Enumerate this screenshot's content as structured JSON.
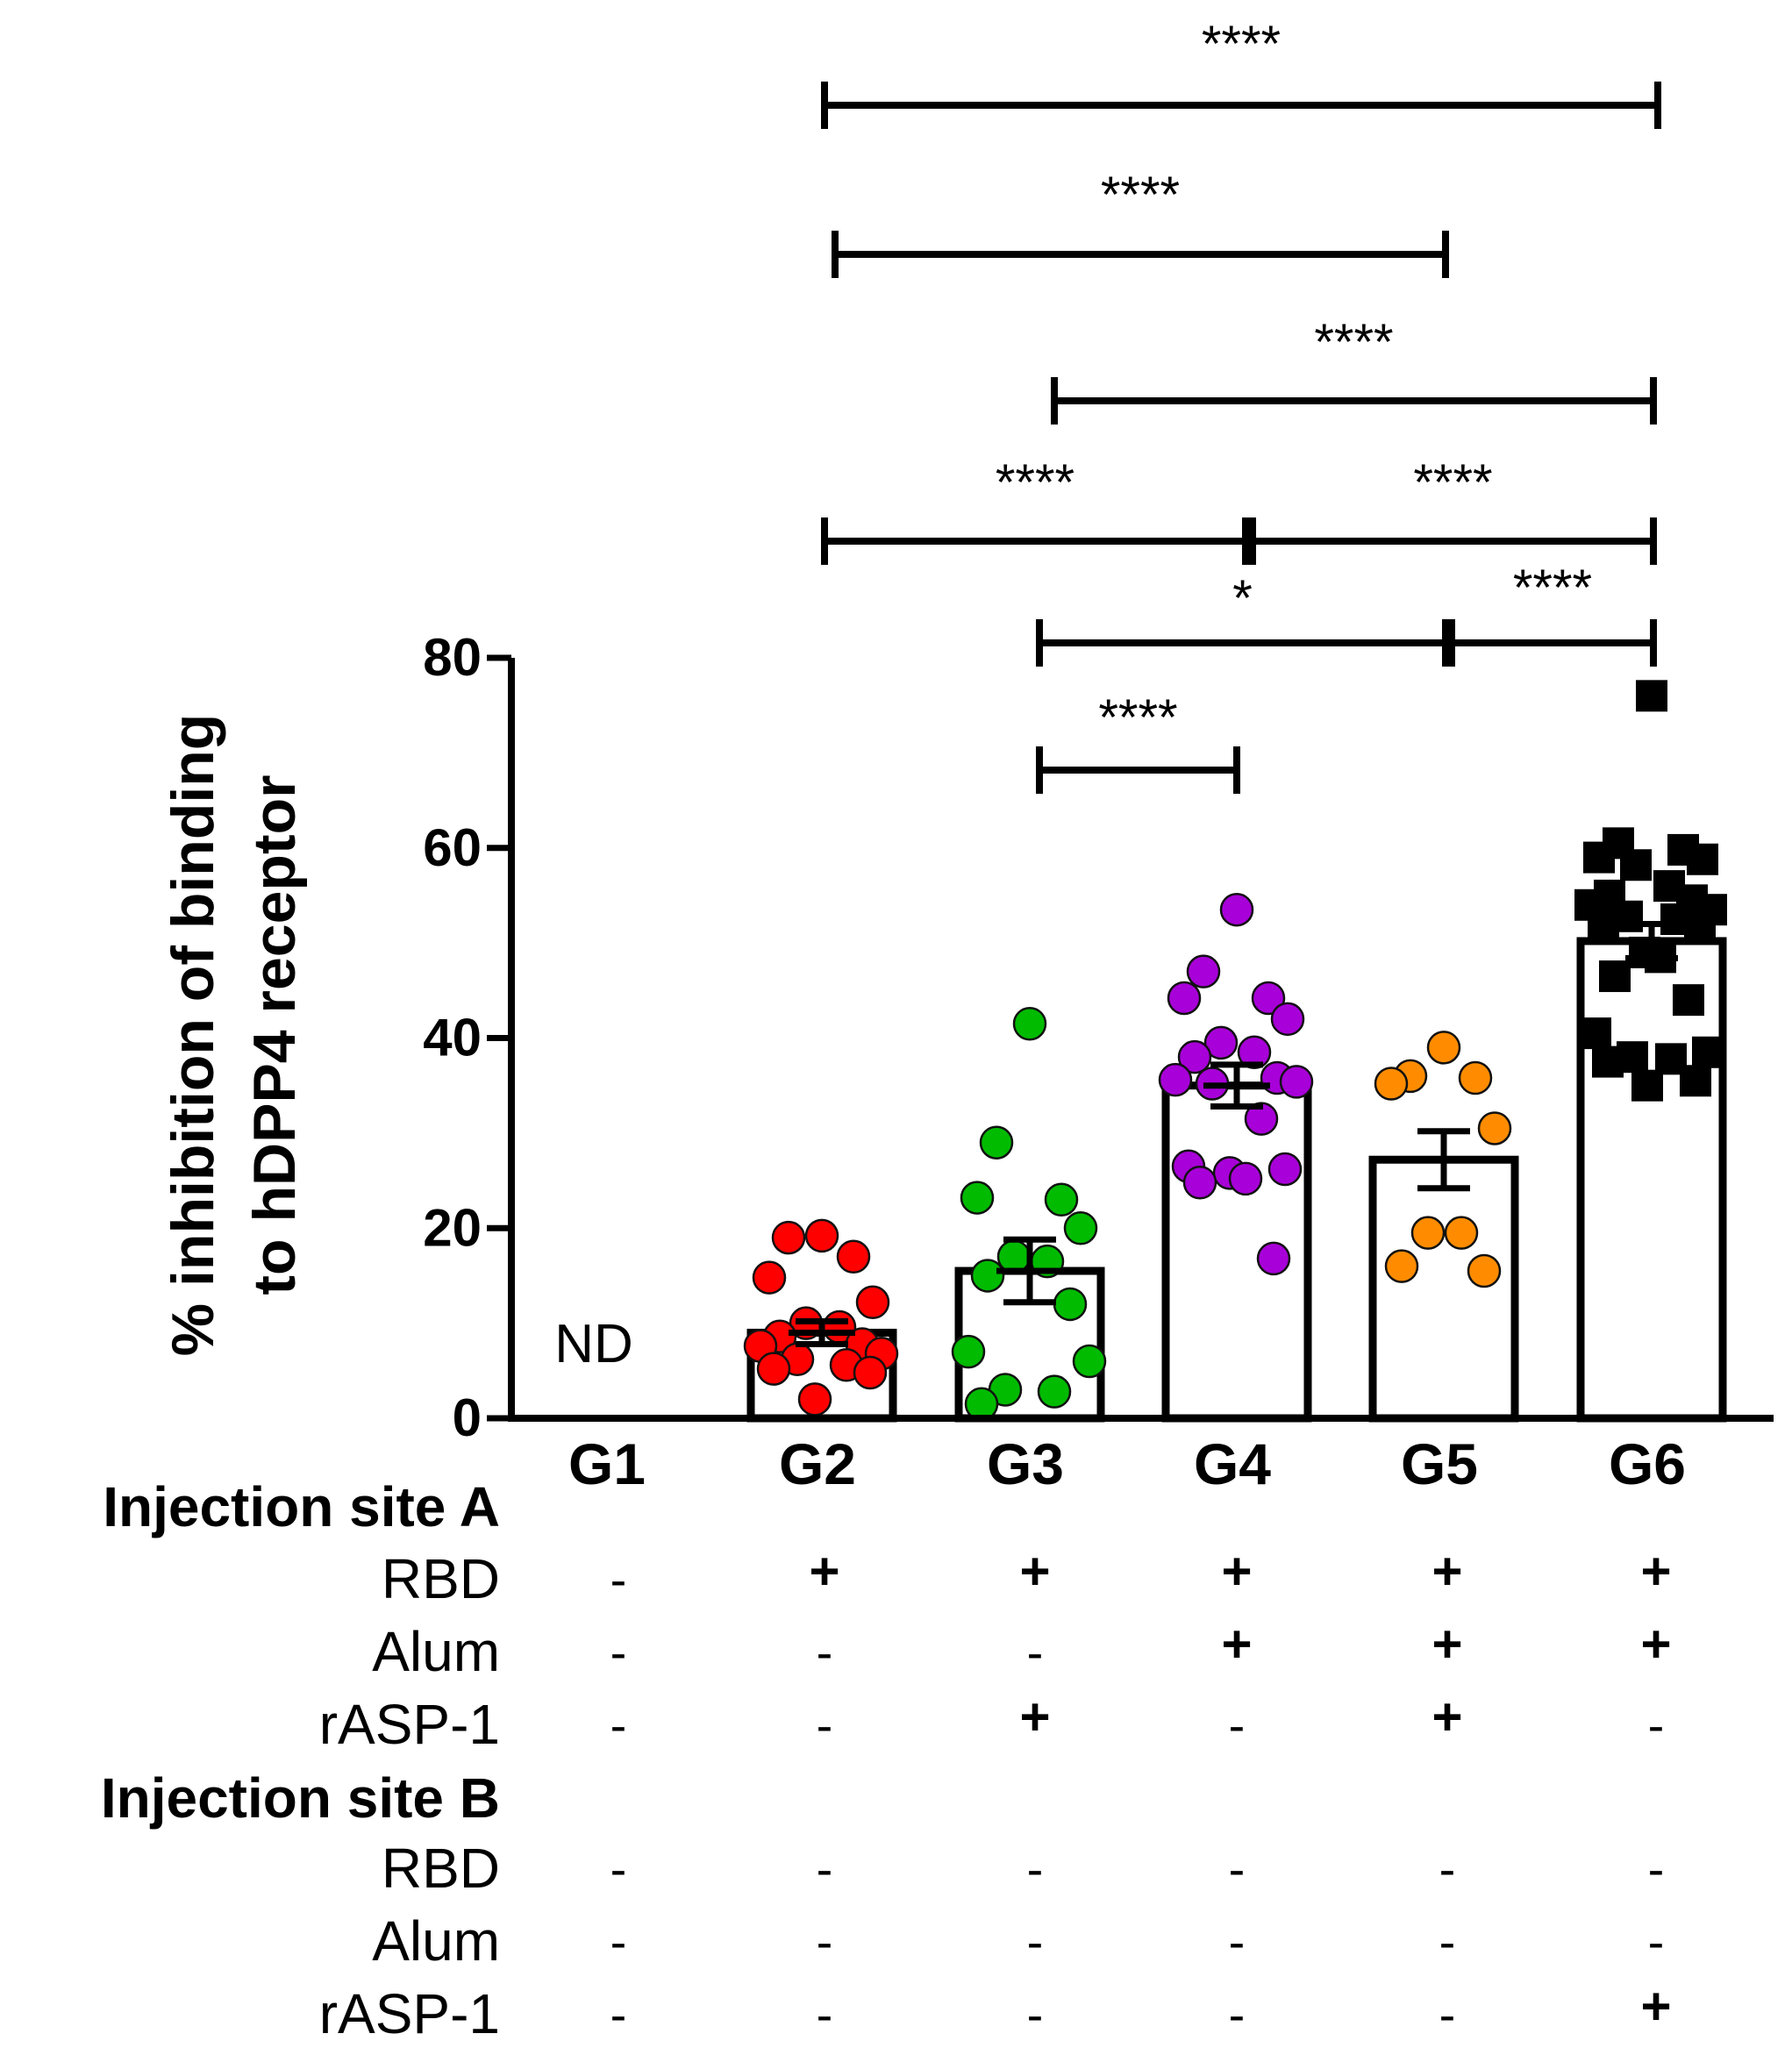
{
  "chart_data": {
    "type": "bar",
    "ylabel_lines": [
      "% inhibition of binding",
      "to hDPP4 receptor"
    ],
    "ylim": [
      0,
      80
    ],
    "yticks": [
      0,
      20,
      40,
      60,
      80
    ],
    "categories": [
      "G1",
      "G2",
      "G3",
      "G4",
      "G5",
      "G6"
    ],
    "bars": [
      {
        "group": "G1",
        "mean": null,
        "sem": null,
        "label": "ND",
        "color": "",
        "marker": "",
        "points": []
      },
      {
        "group": "G2",
        "mean": 9,
        "sem": 1.2,
        "label": "",
        "color": "#ff0000",
        "marker": "circle",
        "points": [
          19.2,
          19,
          17,
          14.8,
          12.2,
          10,
          9.6,
          8.6,
          7.8,
          7.6,
          6.8,
          6.2,
          5.6,
          5.2,
          4.8,
          2
        ]
      },
      {
        "group": "G3",
        "mean": 15.5,
        "sem": 3.3,
        "label": "",
        "color": "#00bb00",
        "marker": "circle",
        "points": [
          41.5,
          29,
          23,
          23.2,
          20,
          17,
          16.5,
          15,
          12,
          7,
          6,
          3,
          2.8,
          1.5
        ]
      },
      {
        "group": "G4",
        "mean": 35,
        "sem": 2.2,
        "label": "",
        "color": "#a800d8",
        "marker": "circle",
        "points": [
          53.5,
          47,
          44.2,
          44.2,
          42,
          39.5,
          38.5,
          38,
          35.8,
          35.6,
          35.4,
          35.2,
          31.5,
          26.5,
          26.2,
          25.8,
          25.2,
          24.8,
          16.8
        ]
      },
      {
        "group": "G5",
        "mean": 27.2,
        "sem": 3,
        "label": "",
        "color": "#ff8c00",
        "marker": "circle",
        "points": [
          39,
          36,
          35.8,
          35.2,
          30.5,
          19.5,
          19.5,
          16,
          15.5
        ]
      },
      {
        "group": "G6",
        "mean": 50.2,
        "sem": 1.8,
        "label": "",
        "color": "#000000",
        "marker": "square",
        "points": [
          76,
          60.5,
          59.8,
          59,
          58.8,
          58.2,
          56,
          55,
          54.5,
          54,
          53.5,
          52.8,
          52.5,
          52,
          51.5,
          49,
          48.5,
          46.5,
          44,
          40.5,
          38.5,
          38,
          37.8,
          37.5,
          35.5,
          35
        ]
      }
    ],
    "significance": [
      {
        "from": "G2",
        "to": "G6",
        "label": "****"
      },
      {
        "from": "G2",
        "to": "G5",
        "label": "****"
      },
      {
        "from": "G3",
        "to": "G6",
        "label": "****"
      },
      {
        "from": "G2",
        "to": "G4",
        "label": "****"
      },
      {
        "from": "G4",
        "to": "G6",
        "label": "****"
      },
      {
        "from": "G3",
        "to": "G5",
        "label": "*"
      },
      {
        "from": "G5",
        "to": "G6",
        "label": "****"
      },
      {
        "from": "G3",
        "to": "G4",
        "label": "****"
      }
    ],
    "design_table": {
      "sections": [
        {
          "title": "Injection site A",
          "rows": [
            {
              "label": "RBD",
              "values": [
                "-",
                "+",
                "+",
                "+",
                "+",
                "+"
              ]
            },
            {
              "label": "Alum",
              "values": [
                "-",
                "-",
                "-",
                "+",
                "+",
                "+"
              ]
            },
            {
              "label": "rASP-1",
              "values": [
                "-",
                "-",
                "+",
                "-",
                "+",
                "-"
              ]
            }
          ]
        },
        {
          "title": "Injection site B",
          "rows": [
            {
              "label": "RBD",
              "values": [
                "-",
                "-",
                "-",
                "-",
                "-",
                "-"
              ]
            },
            {
              "label": "Alum",
              "values": [
                "-",
                "-",
                "-",
                "-",
                "-",
                "-"
              ]
            },
            {
              "label": "rASP-1",
              "values": [
                "-",
                "-",
                "-",
                "-",
                "-",
                "+"
              ]
            }
          ]
        }
      ]
    }
  }
}
